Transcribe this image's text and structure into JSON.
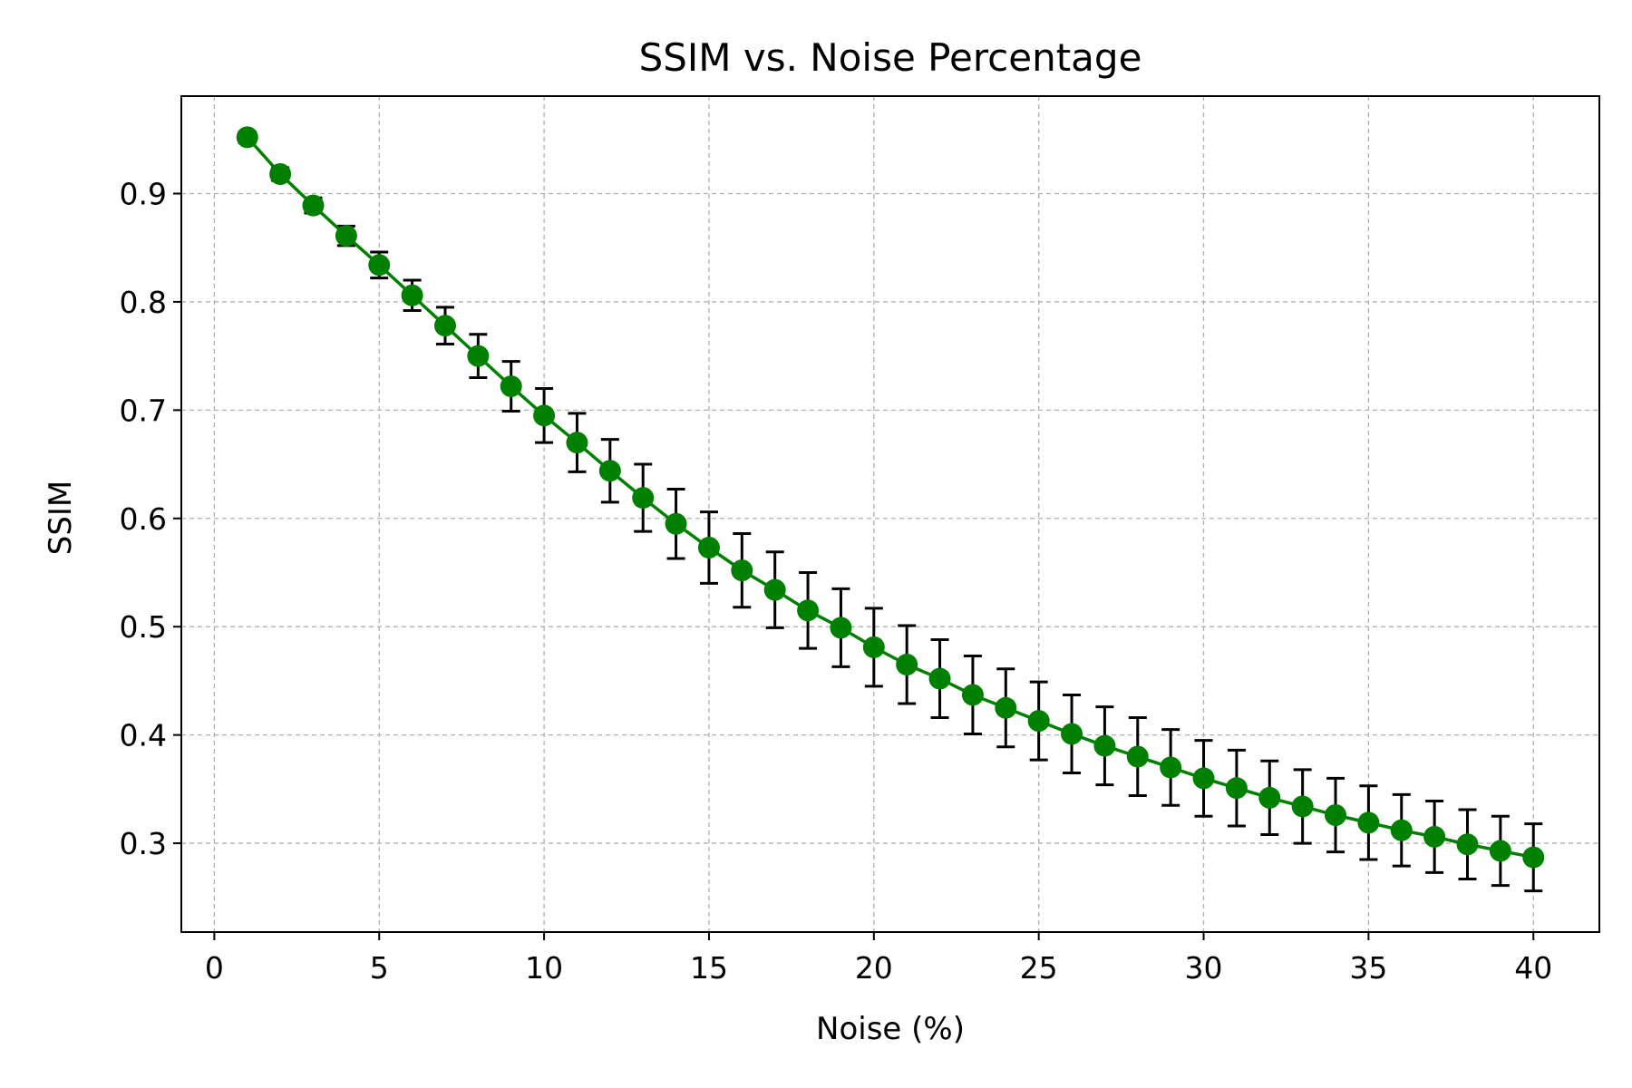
{
  "chart_data": {
    "type": "line",
    "title": "SSIM vs. Noise Percentage",
    "xlabel": "Noise (%)",
    "ylabel": "SSIM",
    "xlim": [
      -1,
      42
    ],
    "ylim": [
      0.218,
      0.99
    ],
    "grid": true,
    "x_ticks": [
      0,
      5,
      10,
      15,
      20,
      25,
      30,
      35,
      40
    ],
    "x_tick_labels": [
      "0",
      "5",
      "10",
      "15",
      "20",
      "25",
      "30",
      "35",
      "40"
    ],
    "y_ticks": [
      0.3,
      0.4,
      0.5,
      0.6,
      0.7,
      0.8,
      0.9
    ],
    "y_tick_labels": [
      "0.3",
      "0.4",
      "0.5",
      "0.6",
      "0.7",
      "0.8",
      "0.9"
    ],
    "series": [
      {
        "name": "SSIM",
        "color": "#008000",
        "marker": "circle",
        "error_color": "#000000",
        "x": [
          1,
          2,
          3,
          4,
          5,
          6,
          7,
          8,
          9,
          10,
          11,
          12,
          13,
          14,
          15,
          16,
          17,
          18,
          19,
          20,
          21,
          22,
          23,
          24,
          25,
          26,
          27,
          28,
          29,
          30,
          31,
          32,
          33,
          34,
          35,
          36,
          37,
          38,
          39,
          40
        ],
        "y": [
          0.952,
          0.918,
          0.889,
          0.861,
          0.834,
          0.806,
          0.778,
          0.75,
          0.722,
          0.695,
          0.67,
          0.644,
          0.619,
          0.595,
          0.573,
          0.552,
          0.534,
          0.515,
          0.499,
          0.481,
          0.465,
          0.452,
          0.437,
          0.425,
          0.413,
          0.401,
          0.39,
          0.38,
          0.37,
          0.36,
          0.351,
          0.342,
          0.334,
          0.326,
          0.319,
          0.312,
          0.306,
          0.299,
          0.293,
          0.287
        ],
        "yerr": [
          0.005,
          0.006,
          0.007,
          0.009,
          0.012,
          0.014,
          0.017,
          0.02,
          0.023,
          0.025,
          0.027,
          0.029,
          0.031,
          0.032,
          0.033,
          0.034,
          0.035,
          0.035,
          0.036,
          0.036,
          0.036,
          0.036,
          0.036,
          0.036,
          0.036,
          0.036,
          0.036,
          0.036,
          0.035,
          0.035,
          0.035,
          0.034,
          0.034,
          0.034,
          0.034,
          0.033,
          0.033,
          0.032,
          0.032,
          0.031
        ]
      }
    ]
  }
}
